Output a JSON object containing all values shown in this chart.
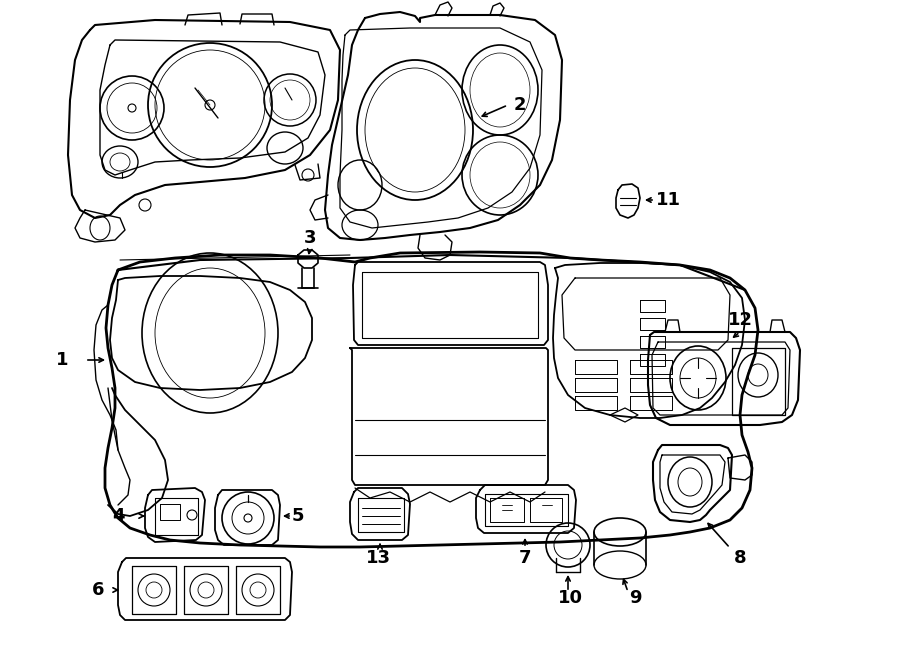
{
  "background": "#ffffff",
  "fig_width": 9.0,
  "fig_height": 6.61,
  "dpi": 100
}
